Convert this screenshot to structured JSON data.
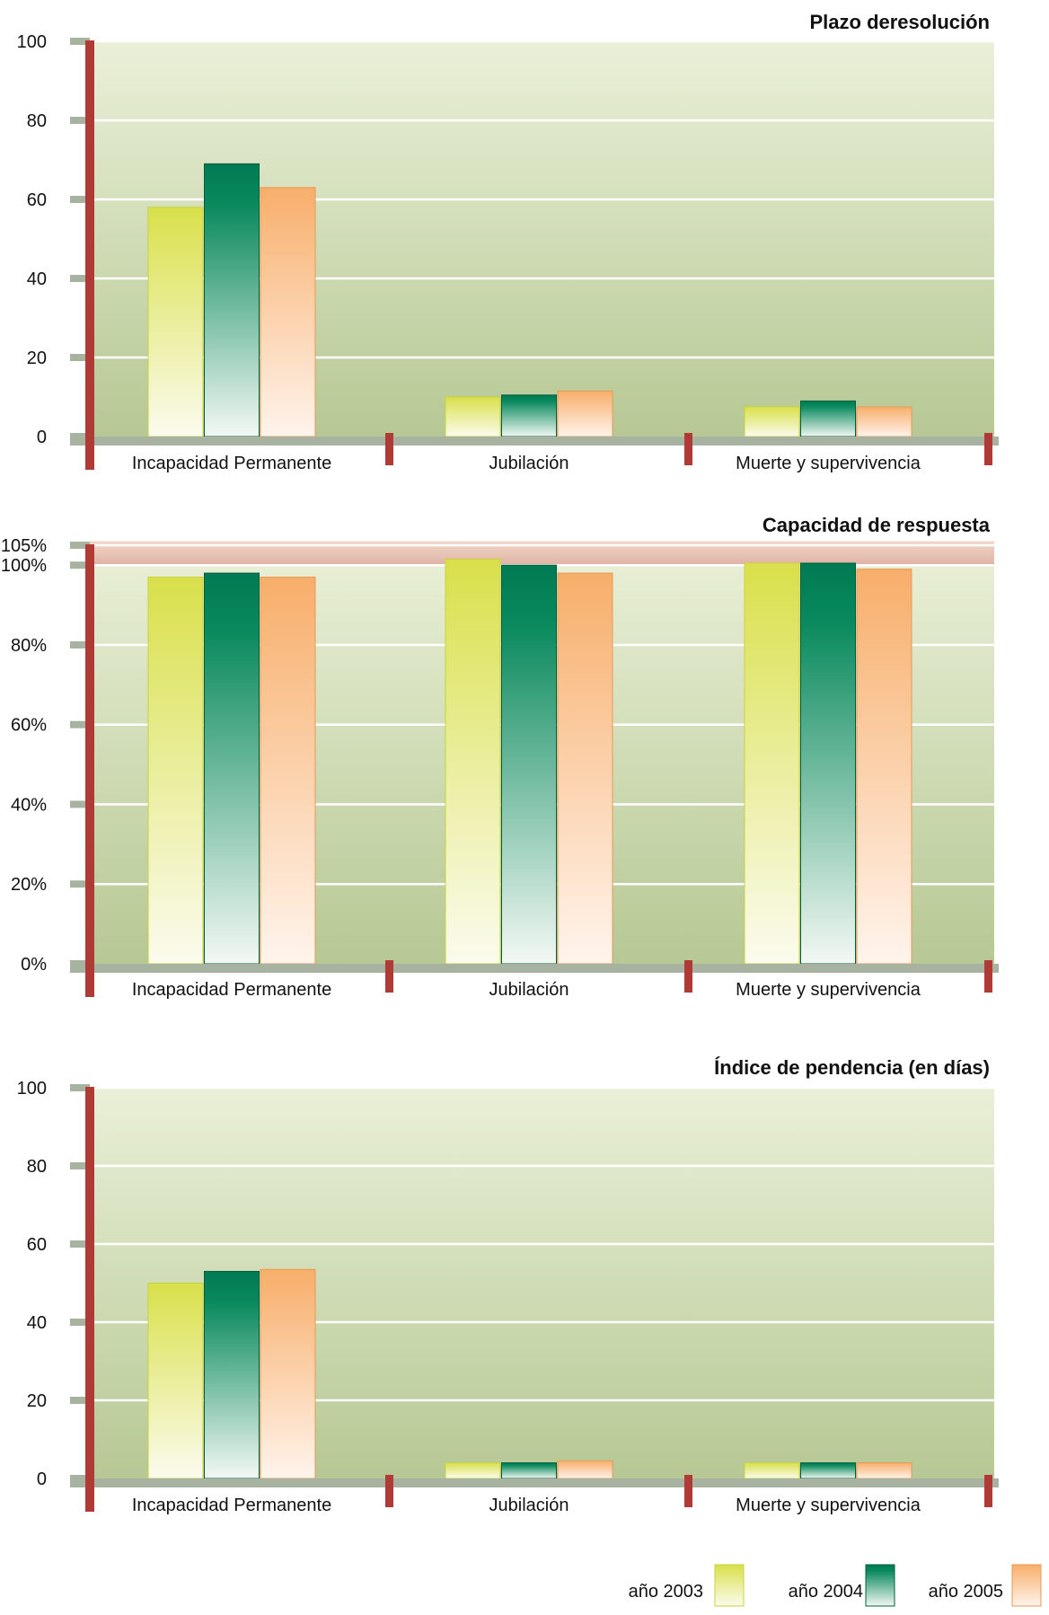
{
  "legend": [
    {
      "label": "año 2003",
      "color": "#d9e04a"
    },
    {
      "label": "año 2004",
      "color": "#007a52"
    },
    {
      "label": "año 2005",
      "color": "#f7ae6a"
    }
  ],
  "chart_data": [
    {
      "type": "bar",
      "title": "Plazo deresolución",
      "categories": [
        "Incapacidad Permanente",
        "Jubilación",
        "Muerte y supervivencia"
      ],
      "series": [
        {
          "name": "año 2003",
          "values": [
            58,
            10,
            7.5
          ]
        },
        {
          "name": "año 2004",
          "values": [
            69,
            10.5,
            9
          ]
        },
        {
          "name": "año 2005",
          "values": [
            63,
            11.5,
            7.5
          ]
        }
      ],
      "ylim": [
        0,
        100
      ],
      "yticks": [
        {
          "value": 0,
          "label": "0"
        },
        {
          "value": 20,
          "label": "20"
        },
        {
          "value": 40,
          "label": "40"
        },
        {
          "value": 60,
          "label": "60"
        },
        {
          "value": 80,
          "label": "80"
        },
        {
          "value": 100,
          "label": "100"
        }
      ],
      "grid": true,
      "legend": "bottom-right"
    },
    {
      "type": "bar",
      "title": "Capacidad de respuesta",
      "categories": [
        "Incapacidad Permanente",
        "Jubilación",
        "Muerte y supervivencia"
      ],
      "series": [
        {
          "name": "año 2003",
          "values": [
            97,
            101.5,
            100.5
          ]
        },
        {
          "name": "año 2004",
          "values": [
            98,
            100,
            100.5
          ]
        },
        {
          "name": "año 2005",
          "values": [
            97,
            98,
            99
          ]
        }
      ],
      "ylim": [
        0,
        105
      ],
      "yticks": [
        {
          "value": 0,
          "label": "0%"
        },
        {
          "value": 20,
          "label": "20%"
        },
        {
          "value": 40,
          "label": "40%"
        },
        {
          "value": 60,
          "label": "60%"
        },
        {
          "value": 80,
          "label": "80%"
        },
        {
          "value": 100,
          "label": "100%"
        },
        {
          "value": 105,
          "label": "105%"
        }
      ],
      "band": [
        100,
        106
      ],
      "grid": true,
      "legend": "bottom-right"
    },
    {
      "type": "bar",
      "title": "Índice de pendencia (en días)",
      "categories": [
        "Incapacidad Permanente",
        "Jubilación",
        "Muerte y supervivencia"
      ],
      "series": [
        {
          "name": "año 2003",
          "values": [
            50,
            4,
            4
          ]
        },
        {
          "name": "año 2004",
          "values": [
            53,
            4,
            4
          ]
        },
        {
          "name": "año 2005",
          "values": [
            53.5,
            4.5,
            4
          ]
        }
      ],
      "ylim": [
        0,
        100
      ],
      "yticks": [
        {
          "value": 0,
          "label": "0"
        },
        {
          "value": 20,
          "label": "20"
        },
        {
          "value": 40,
          "label": "40"
        },
        {
          "value": 60,
          "label": "60"
        },
        {
          "value": 80,
          "label": "80"
        },
        {
          "value": 100,
          "label": "100"
        }
      ],
      "grid": true,
      "legend": "bottom-right"
    }
  ]
}
